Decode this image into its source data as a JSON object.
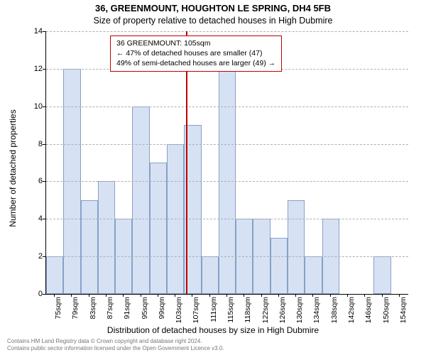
{
  "title_main": "36, GREENMOUNT, HOUGHTON LE SPRING, DH4 5FB",
  "title_sub": "Size of property relative to detached houses in High Dubmire",
  "chart": {
    "type": "histogram",
    "x_categories": [
      "75sqm",
      "79sqm",
      "83sqm",
      "87sqm",
      "91sqm",
      "95sqm",
      "99sqm",
      "103sqm",
      "107sqm",
      "111sqm",
      "115sqm",
      "118sqm",
      "122sqm",
      "126sqm",
      "130sqm",
      "134sqm",
      "138sqm",
      "142sqm",
      "146sqm",
      "150sqm",
      "154sqm"
    ],
    "values": [
      2,
      12,
      5,
      6,
      4,
      10,
      7,
      8,
      9,
      2,
      12,
      4,
      4,
      3,
      5,
      2,
      4,
      0,
      0,
      2,
      0
    ],
    "bar_color": "#d6e2f3",
    "bar_border_color": "#88a0c8",
    "ylim": [
      0,
      14
    ],
    "ytick_step": 2,
    "y_label": "Number of detached properties",
    "x_label": "Distribution of detached houses by size in High Dubmire",
    "grid_color": "#b0b0b0",
    "background_color": "#ffffff",
    "ref_line": {
      "x_value": 105,
      "x_min": 73,
      "x_max": 156,
      "color": "#c00000"
    },
    "annotation": {
      "line1": "36 GREENMOUNT: 105sqm",
      "line2": "← 47% of detached houses are smaller (47)",
      "line3": "49% of semi-detached houses are larger (49) →",
      "border_color": "#c00000"
    }
  },
  "attribution_line1": "Contains HM Land Registry data © Crown copyright and database right 2024.",
  "attribution_line2": "Contains public sector information licensed under the Open Government Licence v3.0."
}
